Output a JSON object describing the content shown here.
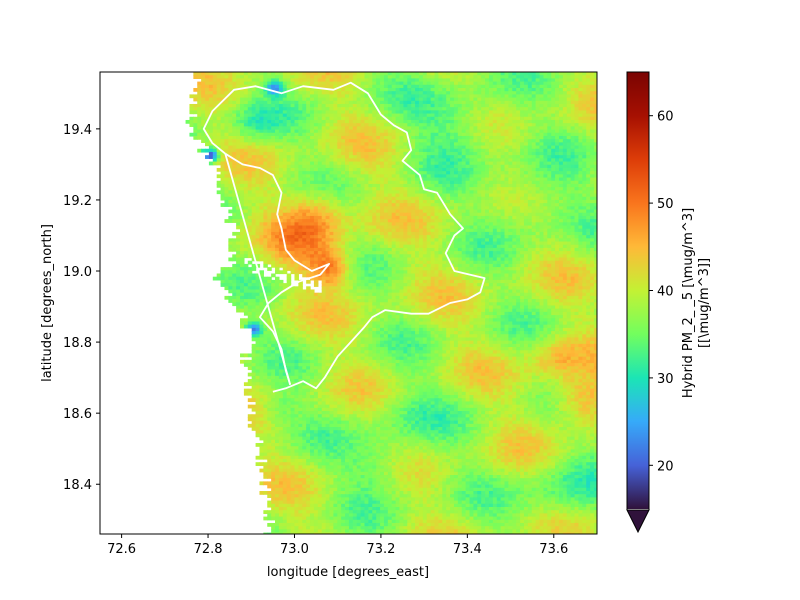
{
  "chart_data": {
    "type": "heatmap",
    "title": "",
    "xlabel": "longitude [degrees_east]",
    "ylabel": "latitude [degrees_north]",
    "xlim": [
      72.55,
      73.7
    ],
    "ylim": [
      18.26,
      19.56
    ],
    "x_ticks": [
      72.6,
      72.8,
      73.0,
      73.2,
      73.4,
      73.6
    ],
    "x_tick_labels": [
      "72.6",
      "72.8",
      "73.0",
      "73.2",
      "73.4",
      "73.6"
    ],
    "y_ticks": [
      18.4,
      18.6,
      18.8,
      19.0,
      19.2,
      19.4
    ],
    "y_tick_labels": [
      "18.4",
      "18.6",
      "18.8",
      "19.0",
      "19.2",
      "19.4"
    ],
    "colorbar": {
      "label_line1": "Hybrid PM_2_ _5 [\\mug/m^3]",
      "label_line2": "[[\\mug/m^3]]",
      "vmin": 15,
      "vmax": 65,
      "ticks": [
        20,
        30,
        40,
        50,
        60
      ],
      "tick_labels": [
        "20",
        "30",
        "40",
        "50",
        "60"
      ],
      "colormap": "turbo",
      "extend": "min"
    },
    "field": {
      "coastline_lon": [
        [
          19.56,
          72.77
        ],
        [
          19.48,
          72.76
        ],
        [
          19.4,
          72.76
        ],
        [
          19.34,
          72.79
        ],
        [
          19.28,
          72.82
        ],
        [
          19.2,
          72.83
        ],
        [
          19.12,
          72.86
        ],
        [
          19.04,
          72.85
        ],
        [
          18.98,
          72.82
        ],
        [
          18.92,
          72.85
        ],
        [
          18.86,
          72.88
        ],
        [
          18.8,
          72.89
        ],
        [
          18.72,
          72.88
        ],
        [
          18.64,
          72.89
        ],
        [
          18.56,
          72.9
        ],
        [
          18.48,
          72.92
        ],
        [
          18.4,
          72.93
        ],
        [
          18.32,
          72.93
        ],
        [
          18.26,
          72.94
        ]
      ],
      "base_level": 38.5,
      "hotspots": [
        {
          "lon": 73.08,
          "lat": 19.01,
          "value": 49,
          "spread": 0.05
        },
        {
          "lon": 73.03,
          "lat": 19.1,
          "value": 46,
          "spread": 0.09
        },
        {
          "lon": 73.05,
          "lat": 19.18,
          "value": 44,
          "spread": 0.06
        },
        {
          "lon": 73.66,
          "lat": 18.64,
          "value": 48,
          "spread": 0.07
        },
        {
          "lon": 73.6,
          "lat": 18.76,
          "value": 45,
          "spread": 0.06
        },
        {
          "lon": 72.8,
          "lat": 19.33,
          "value": 18,
          "spread": 0.02
        },
        {
          "lon": 72.9,
          "lat": 18.84,
          "value": 22,
          "spread": 0.02
        },
        {
          "lon": 72.95,
          "lat": 19.52,
          "value": 24,
          "spread": 0.02
        },
        {
          "lon": 73.38,
          "lat": 19.42,
          "value": 32,
          "spread": 0.1
        },
        {
          "lon": 73.55,
          "lat": 19.2,
          "value": 33,
          "spread": 0.1
        },
        {
          "lon": 73.62,
          "lat": 18.38,
          "value": 33,
          "spread": 0.09
        },
        {
          "lon": 73.2,
          "lat": 18.45,
          "value": 33,
          "spread": 0.08
        },
        {
          "lon": 72.95,
          "lat": 18.62,
          "value": 34,
          "spread": 0.05
        },
        {
          "lon": 73.25,
          "lat": 18.6,
          "value": 35,
          "spread": 0.09
        },
        {
          "lon": 72.9,
          "lat": 19.42,
          "value": 33,
          "spread": 0.06
        }
      ]
    },
    "boundaries": [
      {
        "name": "north-district",
        "points": [
          [
            72.84,
            19.33
          ],
          [
            72.81,
            19.36
          ],
          [
            72.79,
            19.4
          ],
          [
            72.81,
            19.45
          ],
          [
            72.86,
            19.51
          ],
          [
            72.91,
            19.52
          ],
          [
            72.97,
            19.5
          ],
          [
            73.02,
            19.52
          ],
          [
            73.09,
            19.51
          ],
          [
            73.13,
            19.53
          ],
          [
            73.17,
            19.5
          ],
          [
            73.2,
            19.44
          ],
          [
            73.23,
            19.41
          ],
          [
            73.26,
            19.39
          ],
          [
            73.27,
            19.34
          ],
          [
            73.25,
            19.31
          ],
          [
            73.29,
            19.27
          ],
          [
            73.3,
            19.23
          ],
          [
            73.33,
            19.22
          ],
          [
            73.36,
            19.16
          ],
          [
            73.39,
            19.12
          ],
          [
            73.37,
            19.1
          ],
          [
            73.35,
            19.05
          ],
          [
            73.37,
            19.0
          ],
          [
            73.44,
            18.98
          ],
          [
            73.43,
            18.94
          ],
          [
            73.4,
            18.92
          ],
          [
            73.36,
            18.91
          ],
          [
            73.31,
            18.88
          ],
          [
            73.27,
            18.88
          ],
          [
            73.21,
            18.89
          ],
          [
            73.18,
            18.87
          ],
          [
            73.16,
            18.84
          ],
          [
            73.13,
            18.8
          ],
          [
            73.1,
            18.76
          ],
          [
            73.07,
            18.7
          ],
          [
            73.05,
            18.67
          ],
          [
            73.02,
            18.69
          ],
          [
            72.98,
            18.67
          ],
          [
            72.95,
            18.66
          ]
        ]
      },
      {
        "name": "mumbai-coast",
        "points": [
          [
            72.84,
            19.33
          ],
          [
            72.88,
            19.3
          ],
          [
            72.92,
            19.29
          ],
          [
            72.95,
            19.27
          ],
          [
            72.97,
            19.22
          ],
          [
            72.96,
            19.16
          ],
          [
            72.97,
            19.12
          ],
          [
            72.98,
            19.06
          ],
          [
            73.0,
            19.03
          ],
          [
            73.04,
            19.0
          ],
          [
            73.08,
            19.02
          ],
          [
            73.06,
            18.99
          ],
          [
            73.01,
            18.97
          ],
          [
            72.97,
            18.94
          ],
          [
            72.94,
            18.91
          ],
          [
            72.92,
            18.87
          ],
          [
            72.95,
            18.83
          ],
          [
            72.97,
            18.78
          ],
          [
            72.98,
            18.72
          ],
          [
            72.99,
            18.68
          ]
        ]
      },
      {
        "name": "diagonal-line",
        "points": [
          [
            72.84,
            19.33
          ],
          [
            72.99,
            18.68
          ]
        ]
      }
    ]
  }
}
